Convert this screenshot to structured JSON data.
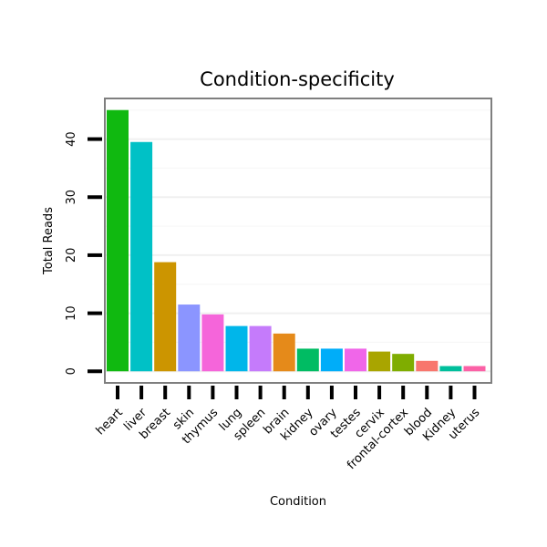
{
  "chart_data": {
    "type": "bar",
    "title": "Condition-specificity",
    "xlabel": "Condition",
    "ylabel": "Total Reads",
    "categories": [
      "heart",
      "liver",
      "breast",
      "skin",
      "thymus",
      "lung",
      "spleen",
      "brain",
      "kidney",
      "ovary",
      "testes",
      "cervix",
      "frontal-cortex",
      "blood",
      "Kidney",
      "uterus"
    ],
    "values": [
      45,
      39.5,
      18.8,
      11.5,
      9.8,
      7.8,
      7.8,
      6.5,
      3.9,
      3.9,
      3.9,
      3.4,
      3.0,
      1.8,
      0.9,
      0.9
    ],
    "colors": [
      "#10B910",
      "#00C1C6",
      "#CC9500",
      "#8B95FF",
      "#F565DA",
      "#00B6EA",
      "#C57BFB",
      "#E58A1A",
      "#00BC63",
      "#00ADF9",
      "#F066E9",
      "#A9A500",
      "#7FAD00",
      "#F8766D",
      "#00BF9C",
      "#FB61A6"
    ],
    "yticks": [
      0,
      10,
      20,
      30,
      40
    ],
    "ylim": [
      -2,
      47
    ],
    "grid": true,
    "legend": "none"
  }
}
